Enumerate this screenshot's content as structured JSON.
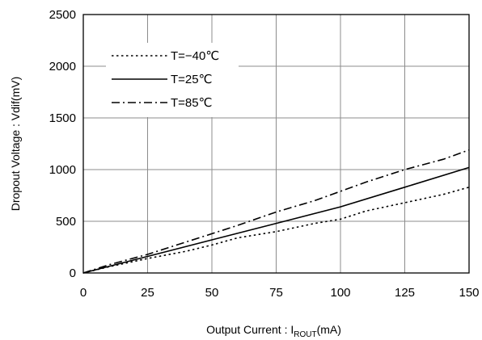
{
  "chart_data": {
    "type": "line",
    "xlabel": {
      "main": "Output Current : I",
      "sub": "ROUT",
      "unit": "(mA)"
    },
    "ylabel": "Dropout Voltage : Vdif(mV)",
    "xlim": [
      0,
      150
    ],
    "ylim": [
      0,
      2500
    ],
    "xticks": [
      0,
      25,
      50,
      75,
      100,
      125,
      150
    ],
    "yticks": [
      0,
      500,
      1000,
      1500,
      2000,
      2500
    ],
    "grid": true,
    "legend_position": "top-left",
    "series": [
      {
        "name": "T=−40℃",
        "line_style": "dotted",
        "color": "#000000",
        "x": [
          0,
          10,
          25,
          40,
          50,
          60,
          75,
          90,
          100,
          110,
          125,
          140,
          150
        ],
        "y": [
          0,
          60,
          140,
          210,
          270,
          340,
          400,
          480,
          520,
          600,
          680,
          760,
          830
        ]
      },
      {
        "name": "T=25℃",
        "line_style": "solid",
        "color": "#000000",
        "x": [
          0,
          25,
          50,
          75,
          100,
          125,
          150
        ],
        "y": [
          0,
          160,
          320,
          480,
          640,
          830,
          1020
        ]
      },
      {
        "name": "T=85℃",
        "line_style": "dashdot",
        "color": "#000000",
        "x": [
          0,
          10,
          25,
          35,
          50,
          60,
          75,
          90,
          100,
          110,
          125,
          140,
          150
        ],
        "y": [
          0,
          80,
          180,
          260,
          380,
          460,
          590,
          700,
          790,
          880,
          1000,
          1100,
          1190
        ]
      }
    ]
  }
}
